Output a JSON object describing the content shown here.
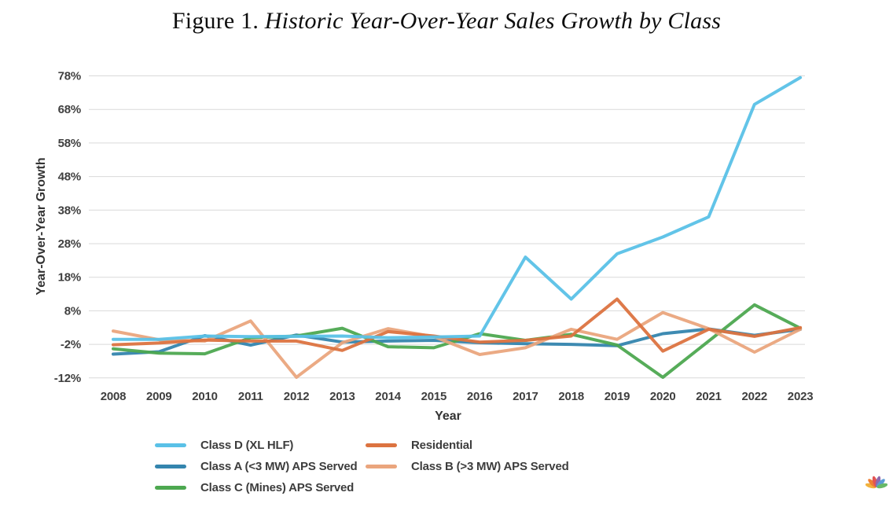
{
  "title": {
    "prefix": "Figure 1. ",
    "main": "Historic Year-Over-Year Sales Growth by Class"
  },
  "chart_data": {
    "type": "line",
    "title": "Figure 1. Historic Year-Over-Year Sales Growth by Class",
    "xlabel": "Year",
    "ylabel": "Year-Over-Year Growth",
    "x": [
      "2008",
      "2009",
      "2010",
      "2011",
      "2012",
      "2013",
      "2014",
      "2015",
      "2016",
      "2017",
      "2018",
      "2019",
      "2020",
      "2021",
      "2022",
      "2023"
    ],
    "yticks": [
      78,
      68,
      58,
      48,
      38,
      28,
      18,
      8,
      -2,
      -12
    ],
    "ytick_suffix": "%",
    "ylim": [
      -15,
      80
    ],
    "grid": "horizontal",
    "legend_position": "bottom",
    "series": [
      {
        "name": "Class D (XL HLF)",
        "color": "#5ac1e7",
        "values": [
          -0.5,
          -0.5,
          0.5,
          0.3,
          0.4,
          0.5,
          0,
          0.2,
          0.5,
          24,
          11.5,
          25,
          30,
          36,
          69.5,
          77.5
        ]
      },
      {
        "name": "Class A (<3 MW) APS Served",
        "color": "#3485ae",
        "values": [
          -4.9,
          -4.2,
          0.6,
          -2.2,
          0.8,
          -1.3,
          -1,
          -0.8,
          -1.5,
          -1.8,
          -2,
          -2.4,
          1.2,
          2.6,
          0.7,
          2.5
        ]
      },
      {
        "name": "Class C (Mines) APS Served",
        "color": "#4da850",
        "values": [
          -3.3,
          -4.6,
          -4.8,
          0,
          0.5,
          2.8,
          -2.7,
          -3,
          1.2,
          -0.8,
          1,
          -2.2,
          -11.8,
          -1,
          9.8,
          2.8
        ]
      },
      {
        "name": "Residential",
        "color": "#dc7340",
        "values": [
          -2.1,
          -1.6,
          -0.7,
          -1,
          -1,
          -3.8,
          1.8,
          0.5,
          -1.3,
          -0.8,
          0.5,
          11.5,
          -4,
          2.5,
          0.4,
          3
        ]
      },
      {
        "name": "Class B (>3 MW) APS Served",
        "color": "#eaa57d",
        "values": [
          2,
          -0.6,
          -1,
          5,
          -11.8,
          -1.5,
          2.7,
          0.3,
          -5,
          -3,
          2.5,
          -0.5,
          7.5,
          2.7,
          -4.3,
          2.5
        ]
      }
    ]
  },
  "watermark": {
    "name": "nbc-peacock-logo",
    "petal_colors": [
      "#f2b23e",
      "#ee7f35",
      "#e35453",
      "#8f68ad",
      "#5b9bd5",
      "#67b967"
    ]
  }
}
